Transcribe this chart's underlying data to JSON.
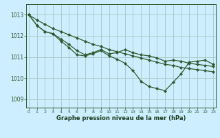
{
  "bg_color": "#cceeff",
  "grid_color": "#aacccc",
  "line_color": "#2d5a2d",
  "marker_color": "#2d5a2d",
  "xlabel": "Graphe pression niveau de la mer (hPa)",
  "xlabel_color": "#1a3a1a",
  "ylabel_ticks": [
    1009,
    1010,
    1011,
    1012,
    1013
  ],
  "xlim": [
    -0.3,
    23.3
  ],
  "ylim": [
    1008.6,
    1013.5
  ],
  "xticks": [
    0,
    1,
    2,
    3,
    4,
    5,
    6,
    7,
    8,
    9,
    10,
    11,
    12,
    13,
    14,
    15,
    16,
    17,
    18,
    19,
    20,
    21,
    22,
    23
  ],
  "line_top": [
    1013.0,
    1012.75,
    1012.55,
    1012.35,
    1012.2,
    1012.05,
    1011.9,
    1011.75,
    1011.6,
    1011.5,
    1011.35,
    1011.25,
    1011.15,
    1011.05,
    1010.95,
    1010.85,
    1010.75,
    1010.65,
    1010.6,
    1010.5,
    1010.45,
    1010.4,
    1010.35,
    1010.3
  ],
  "line_mid": [
    1013.0,
    1012.5,
    1012.2,
    1012.1,
    1011.85,
    1011.6,
    1011.3,
    1011.1,
    1011.2,
    1011.35,
    1011.15,
    1011.2,
    1011.35,
    1011.2,
    1011.1,
    1011.05,
    1010.95,
    1010.8,
    1010.85,
    1010.8,
    1010.7,
    1010.65,
    1010.6,
    1010.55
  ],
  "line_low": [
    1013.0,
    1012.5,
    1012.2,
    1012.1,
    1011.75,
    1011.45,
    1011.1,
    1011.05,
    1011.15,
    1011.3,
    1011.05,
    1010.9,
    1010.7,
    1010.35,
    1009.85,
    1009.6,
    1009.5,
    1009.4,
    1009.8,
    1010.2,
    1010.75,
    1010.8,
    1010.85,
    1010.65
  ]
}
